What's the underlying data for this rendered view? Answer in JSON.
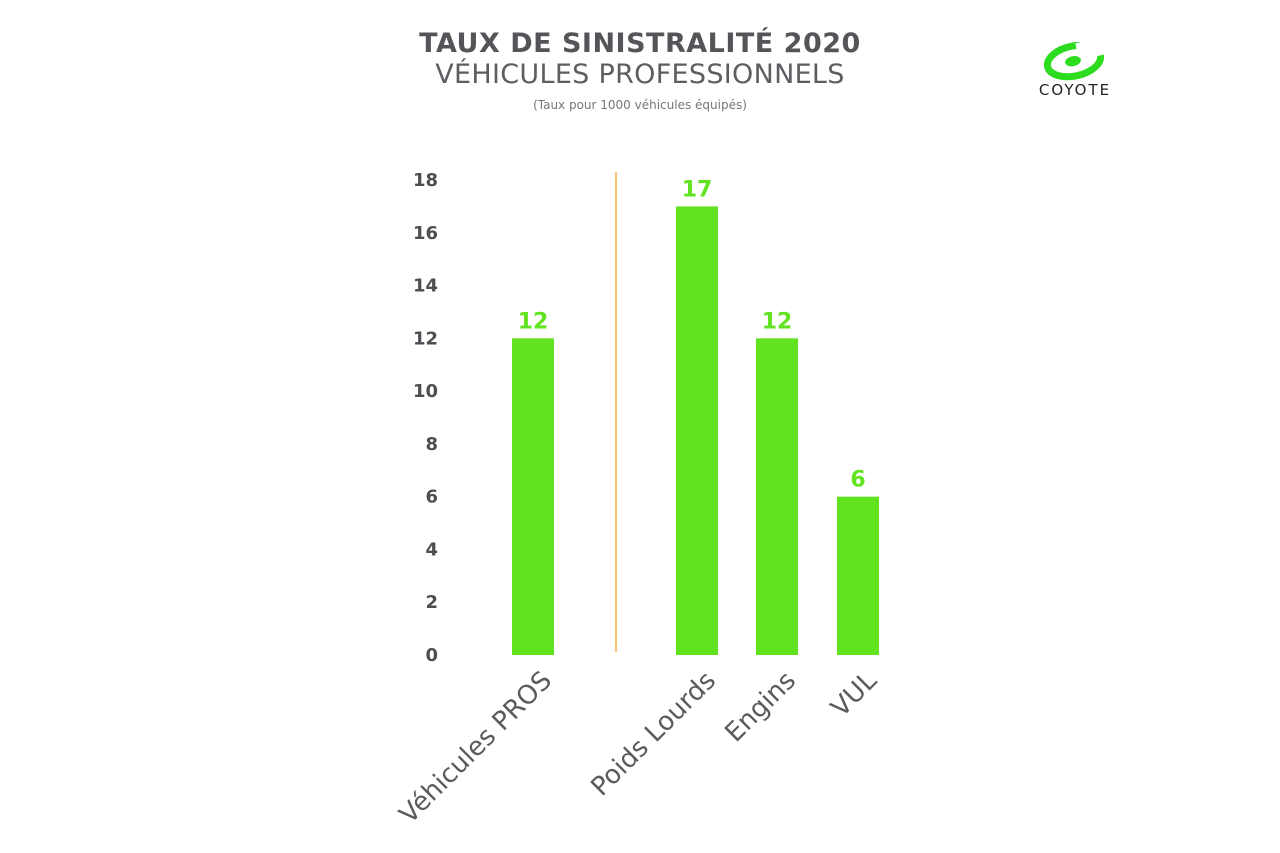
{
  "header": {
    "title": "TAUX DE SINISTRALITÉ 2020",
    "subtitle": "VÉHICULES PROFESSIONNELS",
    "note": "(Taux pour 1000 véhicules équipés)"
  },
  "logo": {
    "text": "COYOTE",
    "icon": "coyote-c-logo-icon",
    "color": "#2ddc1f"
  },
  "colors": {
    "bar": "#62e320",
    "separator": "#f0b43a",
    "tick": "#4d4d52"
  },
  "chart_data": {
    "type": "bar",
    "title": "TAUX DE SINISTRALITÉ 2020",
    "subtitle": "VÉHICULES PROFESSIONNELS",
    "categories": [
      "Véhicules PROS",
      "Poids Lourds",
      "Engins",
      "VUL"
    ],
    "values": [
      12,
      17,
      12,
      6
    ],
    "data_labels": [
      "12",
      "17",
      "12",
      "6"
    ],
    "y_ticks": [
      "0",
      "2",
      "4",
      "6",
      "8",
      "10",
      "12",
      "14",
      "16",
      "18"
    ],
    "ylim": [
      0,
      18
    ],
    "xlabel": "",
    "ylabel": "",
    "grid": false,
    "legend": "none",
    "separator_after_category": 0
  }
}
